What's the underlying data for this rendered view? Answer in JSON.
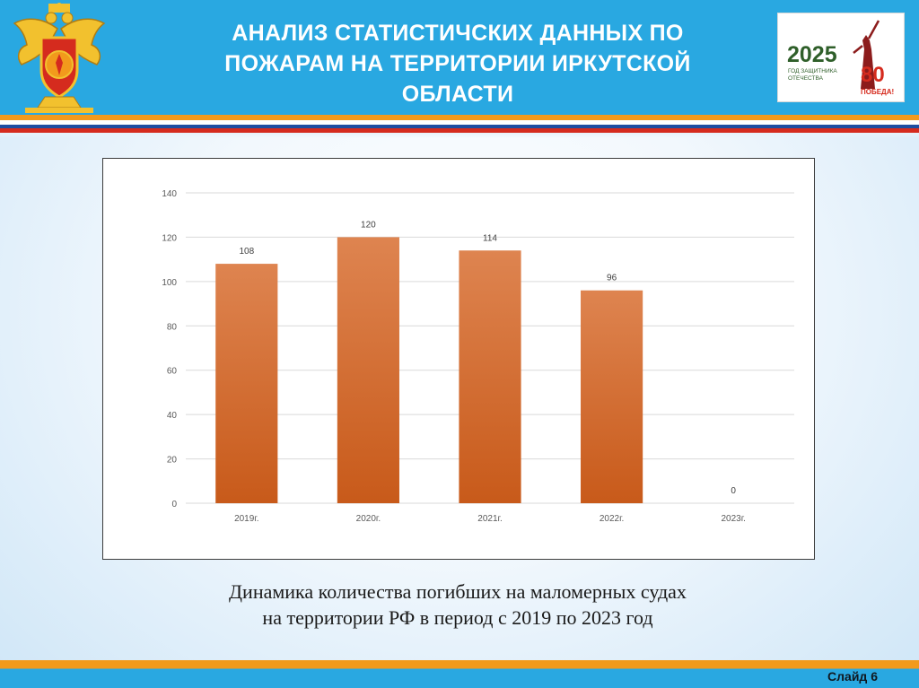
{
  "header": {
    "title_line1": "АНАЛИЗ СТАТИСТИЧСКИХ ДАННЫХ  ПО",
    "title_line2": "ПОЖАРАМ НА ТЕРРИТОРИИ  ИРКУТСКОЙ",
    "title_line3": "ОБЛАСТИ",
    "background_color": "#29a8e1",
    "emblem_icon": "emergency-ministry-emblem-icon"
  },
  "badge": {
    "year": "2025",
    "subtitle_line1": "ГОД ЗАЩИТНИКА",
    "subtitle_line2": "ОТЕЧЕСТВА",
    "anniversary": "80",
    "victory": "ПОБЕДА!",
    "icon": "motherland-calls-statue-icon"
  },
  "chart_data": {
    "type": "bar",
    "categories": [
      "2019г.",
      "2020г.",
      "2021г.",
      "2022г.",
      "2023г."
    ],
    "values": [
      108,
      120,
      114,
      96,
      0
    ],
    "data_labels": [
      "108",
      "120",
      "114",
      "96",
      "0"
    ],
    "ylim": [
      0,
      140
    ],
    "yticks": [
      0,
      20,
      40,
      60,
      80,
      100,
      120,
      140
    ],
    "grid": true,
    "legend": "none",
    "bar_color": "#d2691e",
    "title": "",
    "xlabel": "",
    "ylabel": ""
  },
  "caption": {
    "line1": "Динамика количества погибших на маломерных судах",
    "line2": "на территории РФ в период с 2019 по 2023 год"
  },
  "footer": {
    "slide_label": "Слайд 6"
  },
  "colors": {
    "accent_orange": "#f29a1c",
    "accent_blue": "#29a8e1",
    "flag_red": "#d52b1e",
    "flag_blue": "#1f4ea1"
  }
}
